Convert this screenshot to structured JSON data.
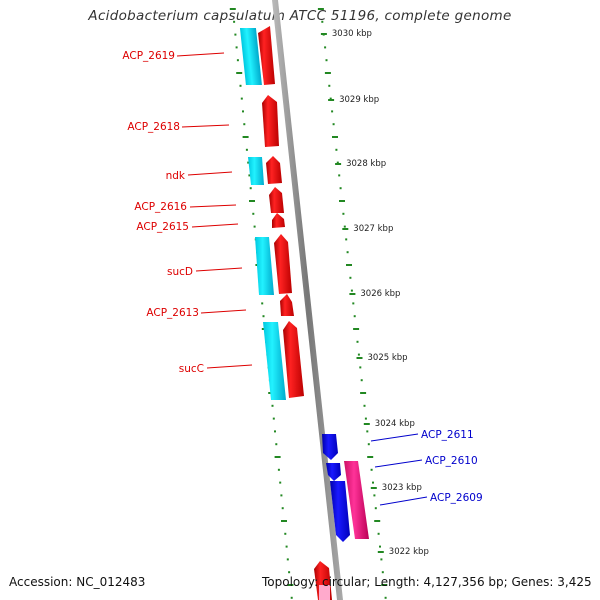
{
  "title": "Acidobacterium capsulatum ATCC 51196, complete genome",
  "accession": "Accession: NC_012483",
  "stats": "Topology: circular; Length: 4,127,356 bp; Genes: 3,425",
  "scale_labels": [
    "3030 kbp",
    "3029 kbp",
    "3028 kbp",
    "3027 kbp",
    "3026 kbp",
    "3025 kbp",
    "3024 kbp",
    "3023 kbp",
    "3022 kbp"
  ],
  "genes": [
    {
      "name": "ACP_2619",
      "color": "#dd0000"
    },
    {
      "name": "ACP_2618",
      "color": "#dd0000"
    },
    {
      "name": "ndk",
      "color": "#dd0000"
    },
    {
      "name": "ACP_2616",
      "color": "#dd0000"
    },
    {
      "name": "ACP_2615",
      "color": "#dd0000"
    },
    {
      "name": "sucD",
      "color": "#dd0000"
    },
    {
      "name": "ACP_2613",
      "color": "#dd0000"
    },
    {
      "name": "sucC",
      "color": "#dd0000"
    },
    {
      "name": "ACP_2611",
      "color": "#0000cc"
    },
    {
      "name": "ACP_2610",
      "color": "#0000cc"
    },
    {
      "name": "ACP_2609",
      "color": "#0000cc"
    }
  ],
  "colors": {
    "forward_strand": "#ff0000",
    "reverse_strand": "#0000ee",
    "rna_feature": "#00ddee",
    "pink_feature": "#ee1177",
    "backbone": "#888888",
    "tick_marks": "#228822"
  }
}
